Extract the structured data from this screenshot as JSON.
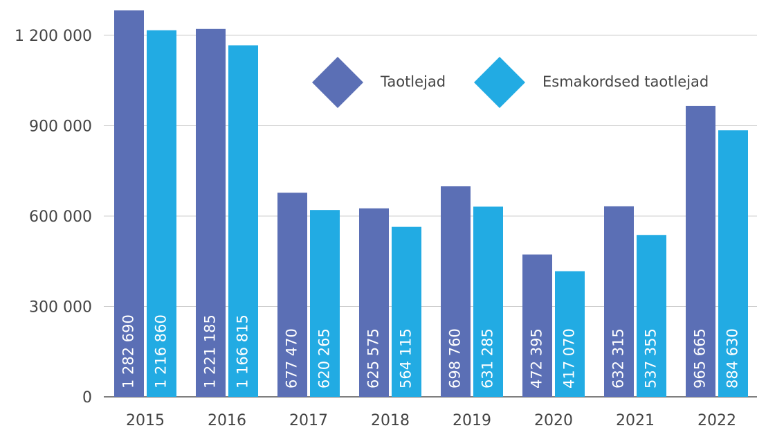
{
  "chart_data": {
    "type": "bar",
    "categories": [
      "2015",
      "2016",
      "2017",
      "2018",
      "2019",
      "2020",
      "2021",
      "2022"
    ],
    "series": [
      {
        "name": "Taotlejad",
        "color": "#5b6fb5",
        "values": [
          1282690,
          1221185,
          677470,
          625575,
          698760,
          472395,
          632315,
          965665
        ],
        "value_labels": [
          "1 282 690",
          "1 221 185",
          "677 470",
          "625 575",
          "698 760",
          "472 395",
          "632 315",
          "965 665"
        ]
      },
      {
        "name": "Esmakordsed taotlejad",
        "color": "#22abe3",
        "values": [
          1216860,
          1166815,
          620265,
          564115,
          631285,
          417070,
          537355,
          884630
        ],
        "value_labels": [
          "1 216 860",
          "1 166 815",
          "620 265",
          "564 115",
          "631 285",
          "417 070",
          "537 355",
          "884 630"
        ]
      }
    ],
    "ylim": [
      0,
      1290000
    ],
    "yticks": [
      0,
      {
        "value": 300000,
        "label": "300 000"
      },
      {
        "value": 600000,
        "label": "600 000"
      },
      {
        "value": 900000,
        "label": "900 000"
      },
      {
        "value": 1200000,
        "label": "1 200 000"
      }
    ],
    "grid": true,
    "legend": "top-right"
  }
}
